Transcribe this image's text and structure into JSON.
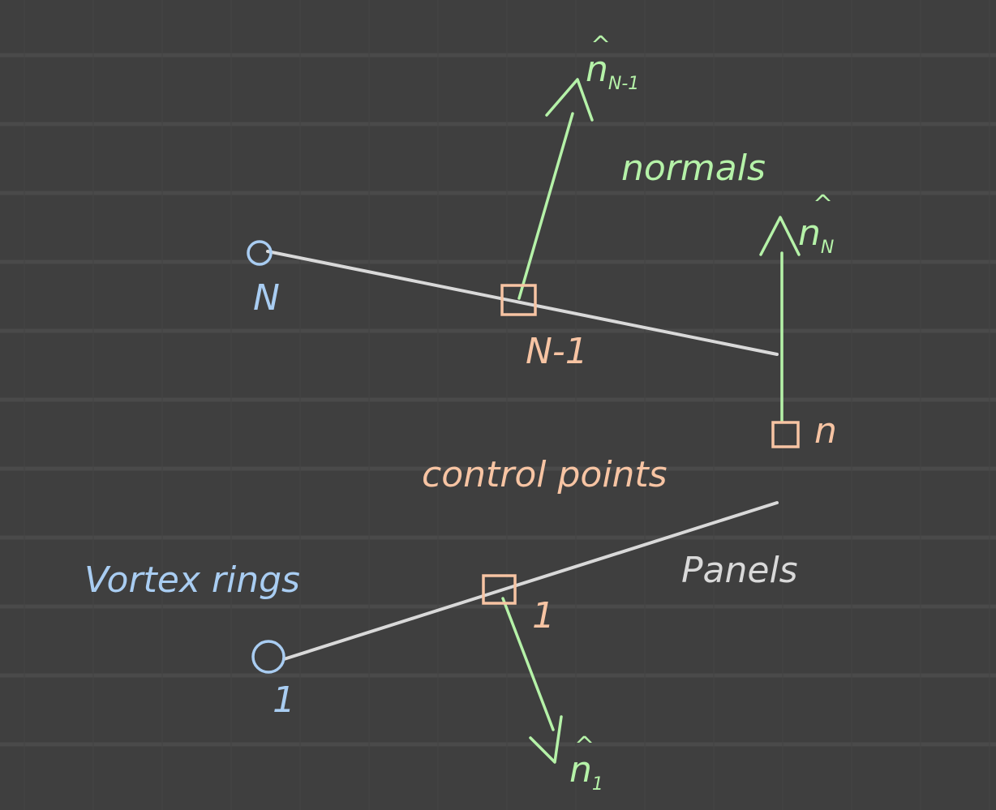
{
  "colors": {
    "background": "#3f3f3f",
    "grid": "#4a4a4a",
    "panel_line": "#d9d9d9",
    "vortex_ring": "#a9cdf2",
    "control_point": "#f7c4a3",
    "normal": "#b5f2a8"
  },
  "labels": {
    "vortex_rings": "Vortex rings",
    "control_points": "control points",
    "normals": "normals",
    "panels": "Panels"
  },
  "nodes": {
    "vortex_top": "N",
    "vortex_bottom": "1",
    "cp_top": "N-1",
    "cp_right": "n",
    "cp_bottom": "1"
  },
  "normals": {
    "n_top": {
      "base": "n",
      "sub": "N-1"
    },
    "n_right": {
      "base": "n",
      "sub": "N"
    },
    "n_bottom": {
      "base": "n",
      "sub": "1"
    }
  }
}
